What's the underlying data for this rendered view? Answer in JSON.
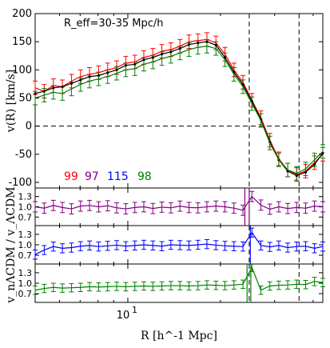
{
  "chart_data": [
    {
      "type": "line",
      "panel": "main",
      "annotation": "R_eff=30-35 Mpc/h",
      "ylabel": "v(R) [km/s]",
      "xlabel": "R [h^-1 Mpc]",
      "xscale": "log",
      "xlim": [
        5.0,
        43.0
      ],
      "ylim": [
        -110,
        200
      ],
      "yticks": [
        -100,
        -50,
        0,
        50,
        100,
        150,
        200
      ],
      "xtick_labels": [
        "10^1"
      ],
      "reference_lines": {
        "horizontal_dashed_y": 0,
        "vertical_dashed_x": [
          24.8,
          36.0
        ]
      },
      "legend_numbers": [
        {
          "text": "99",
          "color": "#ff0000"
        },
        {
          "text": "97",
          "color": "#800080"
        },
        {
          "text": "115",
          "color": "#0000ff"
        },
        {
          "text": "98",
          "color": "#008000"
        }
      ],
      "x": [
        5.0,
        5.35,
        5.73,
        6.13,
        6.56,
        7.02,
        7.51,
        8.04,
        8.6,
        9.2,
        9.85,
        10.54,
        11.27,
        12.06,
        12.9,
        13.8,
        14.77,
        15.8,
        16.9,
        18.07,
        19.33,
        20.68,
        22.12,
        23.66,
        25.3,
        27.06,
        28.93,
        30.93,
        33.07,
        35.36,
        37.8,
        40.41,
        43.0
      ],
      "series": [
        {
          "name": "",
          "color": "#ff0000",
          "values": [
            68,
            62,
            72,
            70,
            80,
            88,
            92,
            95,
            100,
            104,
            112,
            114,
            122,
            126,
            133,
            136,
            142,
            150,
            152,
            154,
            148,
            128,
            100,
            78,
            46,
            15,
            -25,
            -58,
            -78,
            -86,
            -80,
            -65,
            -50
          ],
          "err": 12
        },
        {
          "name": "",
          "color": "#000000",
          "values": [
            58,
            62,
            68,
            70,
            76,
            82,
            88,
            90,
            95,
            100,
            108,
            110,
            118,
            122,
            128,
            132,
            138,
            145,
            148,
            150,
            144,
            122,
            96,
            74,
            44,
            12,
            -28,
            -60,
            -80,
            -88,
            -82,
            -68,
            -48
          ],
          "err": 0
        },
        {
          "name": "",
          "color": "#008000",
          "values": [
            50,
            55,
            60,
            58,
            66,
            74,
            80,
            84,
            88,
            94,
            100,
            102,
            110,
            114,
            120,
            124,
            130,
            136,
            140,
            142,
            138,
            118,
            92,
            70,
            40,
            10,
            -30,
            -60,
            -78,
            -84,
            -76,
            -60,
            -45
          ],
          "err": 12
        }
      ]
    },
    {
      "type": "line",
      "panel": "ratio-97",
      "ylabel": "v_nΛCDM / v_ΛCDM",
      "yticks": [
        0.7,
        1.0,
        1.3
      ],
      "ylim": [
        0.45,
        1.55
      ],
      "vertical_solid_x": [
        24.0,
        24.8
      ],
      "vertical_dashed_x": [
        24.8,
        36.0
      ],
      "series": [
        {
          "name": "",
          "color": "#800080",
          "values": [
            1.0,
            0.96,
            1.04,
            0.98,
            0.94,
            1.02,
            1.04,
            1.0,
            1.03,
            0.97,
            0.94,
            0.98,
            1.0,
            0.95,
            0.99,
            0.97,
            1.02,
            0.98,
            0.97,
            1.0,
            1.02,
            1.0,
            0.96,
            0.9,
            1.3,
            1.05,
            0.93,
            1.0,
            0.95,
            0.98,
            0.96,
            1.02,
            1.0
          ],
          "err": 0.15
        }
      ]
    },
    {
      "type": "line",
      "panel": "ratio-115",
      "yticks": [
        0.7,
        1.0,
        1.3
      ],
      "ylim": [
        0.45,
        1.55
      ],
      "vertical_solid_x": [
        25.0
      ],
      "vertical_dashed_x": [
        24.8,
        36.0
      ],
      "series": [
        {
          "name": "",
          "color": "#0000ff",
          "values": [
            0.72,
            0.85,
            0.95,
            0.9,
            0.92,
            0.96,
            0.98,
            0.95,
            0.97,
            0.99,
            0.96,
            0.98,
            1.0,
            0.98,
            0.96,
            1.0,
            0.99,
            0.98,
            1.0,
            1.02,
            0.99,
            0.97,
            0.96,
            0.95,
            1.35,
            0.98,
            0.94,
            0.98,
            0.92,
            0.95,
            0.96,
            0.9,
            0.95
          ],
          "err": 0.13
        }
      ]
    },
    {
      "type": "line",
      "panel": "ratio-98",
      "yticks": [
        0.7,
        1.0,
        1.3
      ],
      "ylim": [
        0.45,
        1.55
      ],
      "vertical_solid_x": [
        24.4,
        25.1
      ],
      "vertical_dashed_x": [
        24.8,
        36.0
      ],
      "series": [
        {
          "name": "",
          "color": "#008000",
          "values": [
            0.8,
            0.85,
            0.88,
            0.86,
            0.87,
            0.88,
            0.9,
            0.89,
            0.9,
            0.91,
            0.9,
            0.91,
            0.92,
            0.91,
            0.92,
            0.93,
            0.93,
            0.92,
            0.93,
            0.95,
            0.94,
            0.93,
            0.95,
            0.97,
            1.45,
            0.8,
            0.92,
            0.94,
            0.95,
            0.97,
            0.96,
            1.05,
            1.02
          ],
          "err": 0.12
        }
      ]
    }
  ]
}
